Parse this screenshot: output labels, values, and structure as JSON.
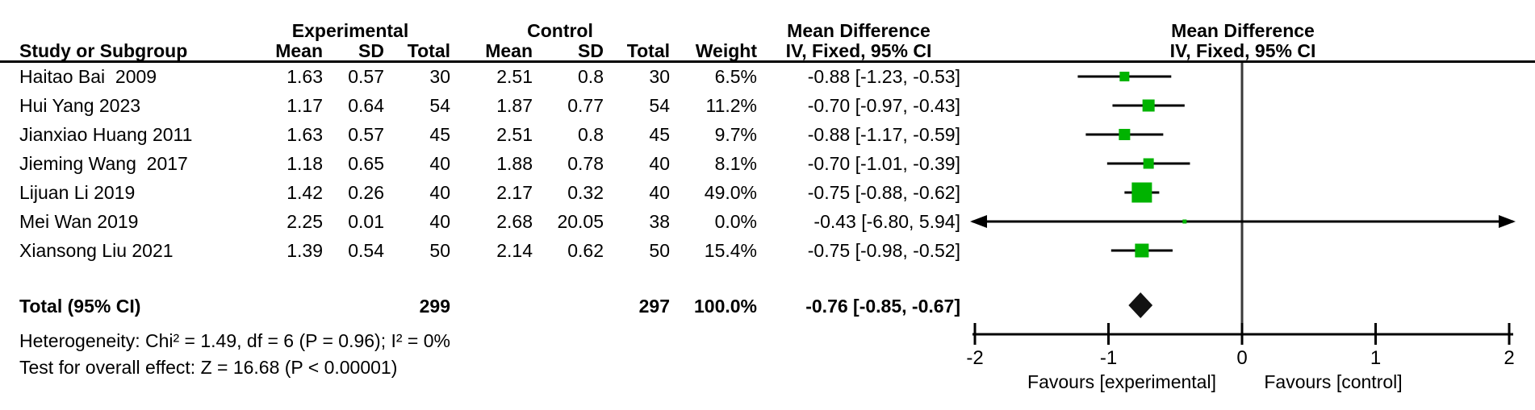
{
  "colors": {
    "marker_green": "#00b300",
    "diamond_black": "#121212",
    "line_black": "#000000",
    "zero_line": "#3a3a3a"
  },
  "header": {
    "experimental": "Experimental",
    "control": "Control",
    "mean_difference": "Mean Difference",
    "iv_fixed": "IV, Fixed, 95% CI",
    "study_or_subgroup": "Study or Subgroup",
    "mean": "Mean",
    "sd": "SD",
    "total": "Total",
    "weight": "Weight"
  },
  "chart_data": {
    "type": "forest",
    "effect_label": "Mean Difference",
    "model_label": "IV, Fixed, 95% CI",
    "axis": {
      "min": -2,
      "max": 2,
      "ticks": [
        -2,
        -1,
        0,
        1,
        2
      ],
      "favours_left": "Favours [experimental]",
      "favours_right": "Favours [control]"
    },
    "studies": [
      {
        "name": "Haitao Bai  2009",
        "exp_mean": "1.63",
        "exp_sd": "0.57",
        "exp_total": "30",
        "ctrl_mean": "2.51",
        "ctrl_sd": "0.8",
        "ctrl_total": "30",
        "weight": "6.5%",
        "weight_pct": 6.5,
        "md": -0.88,
        "ci_low": -1.23,
        "ci_high": -0.53,
        "md_ci": "-0.88 [-1.23, -0.53]"
      },
      {
        "name": "Hui Yang 2023",
        "exp_mean": "1.17",
        "exp_sd": "0.64",
        "exp_total": "54",
        "ctrl_mean": "1.87",
        "ctrl_sd": "0.77",
        "ctrl_total": "54",
        "weight": "11.2%",
        "weight_pct": 11.2,
        "md": -0.7,
        "ci_low": -0.97,
        "ci_high": -0.43,
        "md_ci": "-0.70 [-0.97, -0.43]"
      },
      {
        "name": "Jianxiao Huang 2011",
        "exp_mean": "1.63",
        "exp_sd": "0.57",
        "exp_total": "45",
        "ctrl_mean": "2.51",
        "ctrl_sd": "0.8",
        "ctrl_total": "45",
        "weight": "9.7%",
        "weight_pct": 9.7,
        "md": -0.88,
        "ci_low": -1.17,
        "ci_high": -0.59,
        "md_ci": "-0.88 [-1.17, -0.59]"
      },
      {
        "name": "Jieming Wang  2017",
        "exp_mean": "1.18",
        "exp_sd": "0.65",
        "exp_total": "40",
        "ctrl_mean": "1.88",
        "ctrl_sd": "0.78",
        "ctrl_total": "40",
        "weight": "8.1%",
        "weight_pct": 8.1,
        "md": -0.7,
        "ci_low": -1.01,
        "ci_high": -0.39,
        "md_ci": "-0.70 [-1.01, -0.39]"
      },
      {
        "name": "Lijuan Li 2019",
        "exp_mean": "1.42",
        "exp_sd": "0.26",
        "exp_total": "40",
        "ctrl_mean": "2.17",
        "ctrl_sd": "0.32",
        "ctrl_total": "40",
        "weight": "49.0%",
        "weight_pct": 49.0,
        "md": -0.75,
        "ci_low": -0.88,
        "ci_high": -0.62,
        "md_ci": "-0.75 [-0.88, -0.62]"
      },
      {
        "name": "Mei Wan 2019",
        "exp_mean": "2.25",
        "exp_sd": "0.01",
        "exp_total": "40",
        "ctrl_mean": "2.68",
        "ctrl_sd": "20.05",
        "ctrl_total": "38",
        "weight": "0.0%",
        "weight_pct": 0.0,
        "md": -0.43,
        "ci_low": -6.8,
        "ci_high": 5.94,
        "md_ci": "-0.43 [-6.80, 5.94]"
      },
      {
        "name": "Xiansong Liu 2021",
        "exp_mean": "1.39",
        "exp_sd": "0.54",
        "exp_total": "50",
        "ctrl_mean": "2.14",
        "ctrl_sd": "0.62",
        "ctrl_total": "50",
        "weight": "15.4%",
        "weight_pct": 15.4,
        "md": -0.75,
        "ci_low": -0.98,
        "ci_high": -0.52,
        "md_ci": "-0.75 [-0.98, -0.52]"
      }
    ],
    "total": {
      "label": "Total (95% CI)",
      "exp_total": "299",
      "ctrl_total": "297",
      "weight": "100.0%",
      "md": -0.76,
      "ci_low": -0.85,
      "ci_high": -0.67,
      "md_ci": "-0.76 [-0.85, -0.67]"
    },
    "heterogeneity": "Heterogeneity: Chi² = 1.49, df = 6 (P = 0.96); I² = 0%",
    "overall_effect": "Test for overall effect: Z = 16.68 (P < 0.00001)"
  }
}
